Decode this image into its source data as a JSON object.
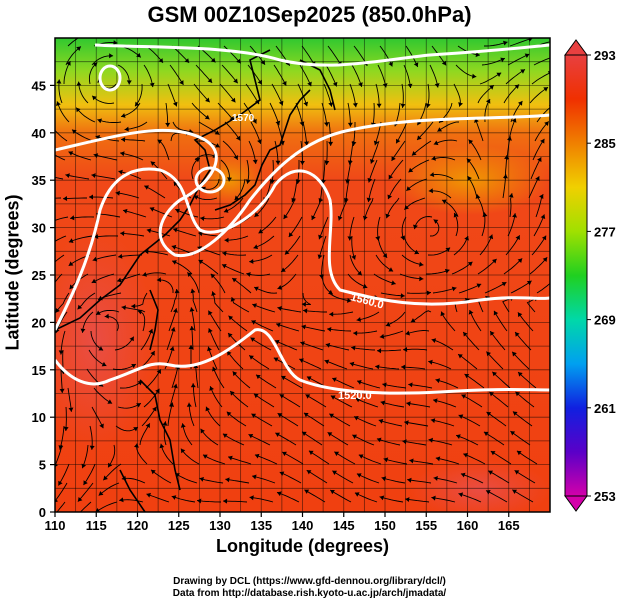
{
  "title": "GSM 00Z10Sep2025 (850.0hPa)",
  "x_axis": {
    "label": "Longitude (degrees)",
    "ticks": [
      "110",
      "115",
      "120",
      "125",
      "130",
      "135",
      "140",
      "145",
      "150",
      "155",
      "160",
      "165"
    ],
    "range": [
      110,
      170
    ]
  },
  "y_axis": {
    "label": "Latitude  (degrees)",
    "ticks": [
      "0",
      "5",
      "10",
      "15",
      "20",
      "25",
      "30",
      "35",
      "40",
      "45"
    ],
    "range": [
      0,
      50
    ]
  },
  "colorbar": {
    "labels": [
      "253",
      "261",
      "269",
      "277",
      "285",
      "293"
    ],
    "min": 253,
    "max": 293,
    "colors": [
      "#d400aa",
      "#5a00c8",
      "#1020e0",
      "#00a0f0",
      "#00d8a8",
      "#20d020",
      "#a0e000",
      "#f0d000",
      "#f08000",
      "#f03000",
      "#e84040"
    ]
  },
  "contours": [
    {
      "label": "1560.0"
    },
    {
      "label": "1520.0"
    },
    {
      "label": "1570"
    }
  ],
  "credits": {
    "line1": "Drawing by DCL (https://www.gfd-dennou.org/library/dcl/)",
    "line2": "Data from http://database.rish.kyoto-u.ac.jp/arch/jmadata/"
  }
}
